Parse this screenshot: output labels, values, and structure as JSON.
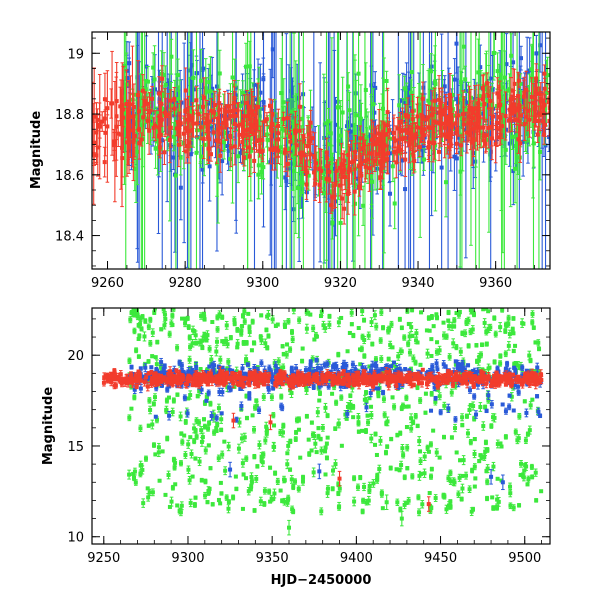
{
  "chart_data": [
    {
      "type": "scatter",
      "panel": "top",
      "xlabel": "",
      "ylabel": "Magnitude",
      "xlim": [
        9256,
        9374
      ],
      "ylim": [
        19.07,
        18.29
      ],
      "y_inverted": true,
      "x_ticks": [
        "9260",
        "9280",
        "9300",
        "9320",
        "9340",
        "9360"
      ],
      "y_ticks": [
        "18.4",
        "18.6",
        "18.8",
        "19"
      ],
      "error_bars": true,
      "series": [
        {
          "color": "#2a5ad8",
          "trend": [
            [
              9264,
              18.82
            ],
            [
              9280,
              18.78
            ],
            [
              9300,
              18.8
            ],
            [
              9310,
              18.7
            ],
            [
              9318,
              18.62
            ],
            [
              9325,
              18.7
            ],
            [
              9335,
              18.74
            ],
            [
              9345,
              18.82
            ],
            [
              9355,
              18.8
            ],
            [
              9365,
              18.82
            ],
            [
              9374,
              18.82
            ]
          ]
        },
        {
          "color": "#3ce83c",
          "trend": [
            [
              9264,
              18.8
            ],
            [
              9280,
              18.78
            ],
            [
              9300,
              18.78
            ],
            [
              9310,
              18.7
            ],
            [
              9318,
              18.63
            ],
            [
              9325,
              18.7
            ],
            [
              9335,
              18.74
            ],
            [
              9345,
              18.8
            ],
            [
              9355,
              18.8
            ],
            [
              9365,
              18.82
            ],
            [
              9374,
              18.82
            ]
          ]
        },
        {
          "color": "#f23c2c",
          "trend": [
            [
              9256,
              18.72
            ],
            [
              9264,
              18.78
            ],
            [
              9280,
              18.78
            ],
            [
              9295,
              18.76
            ],
            [
              9305,
              18.74
            ],
            [
              9312,
              18.66
            ],
            [
              9318,
              18.58
            ],
            [
              9325,
              18.66
            ],
            [
              9335,
              18.72
            ],
            [
              9345,
              18.78
            ],
            [
              9355,
              18.78
            ],
            [
              9365,
              18.82
            ],
            [
              9374,
              18.82
            ]
          ]
        }
      ]
    },
    {
      "type": "scatter",
      "panel": "bottom",
      "xlabel": "HJD−2450000",
      "ylabel": "Magnitude",
      "xlim": [
        9243,
        9515
      ],
      "ylim": [
        22.6,
        9.6
      ],
      "y_inverted": true,
      "x_ticks": [
        "9250",
        "9300",
        "9350",
        "9400",
        "9450",
        "9500"
      ],
      "y_ticks": [
        "10",
        "15",
        "20"
      ],
      "error_bars": true,
      "series": [
        {
          "color": "#3ce83c",
          "x_range": [
            9265,
            9510
          ],
          "baseline": 18.8,
          "scatter_span": 7.5
        },
        {
          "color": "#2a5ad8",
          "x_range": [
            9265,
            9510
          ],
          "baseline": 18.9,
          "scatter_span": 2.5
        },
        {
          "color": "#f23c2c",
          "x_range": [
            9250,
            9510
          ],
          "baseline": 18.7,
          "scatter_span": 0.4
        }
      ],
      "highlighted_points": [
        {
          "series_color": "#f23c2c",
          "x": 9443,
          "y": 11.8
        },
        {
          "series_color": "#f23c2c",
          "x": 9390,
          "y": 13.2
        },
        {
          "series_color": "#f23c2c",
          "x": 9349,
          "y": 16.3
        },
        {
          "series_color": "#f23c2c",
          "x": 9327,
          "y": 16.4
        },
        {
          "series_color": "#2a5ad8",
          "x": 9325,
          "y": 13.7
        },
        {
          "series_color": "#2a5ad8",
          "x": 9378,
          "y": 13.6
        },
        {
          "series_color": "#2a5ad8",
          "x": 9480,
          "y": 13.3
        },
        {
          "series_color": "#2a5ad8",
          "x": 9487,
          "y": 13.0
        },
        {
          "series_color": "#3ce83c",
          "x": 9360,
          "y": 10.5
        },
        {
          "series_color": "#3ce83c",
          "x": 9427,
          "y": 11.0
        },
        {
          "series_color": "#3ce83c",
          "x": 9418,
          "y": 11.9
        }
      ]
    }
  ]
}
